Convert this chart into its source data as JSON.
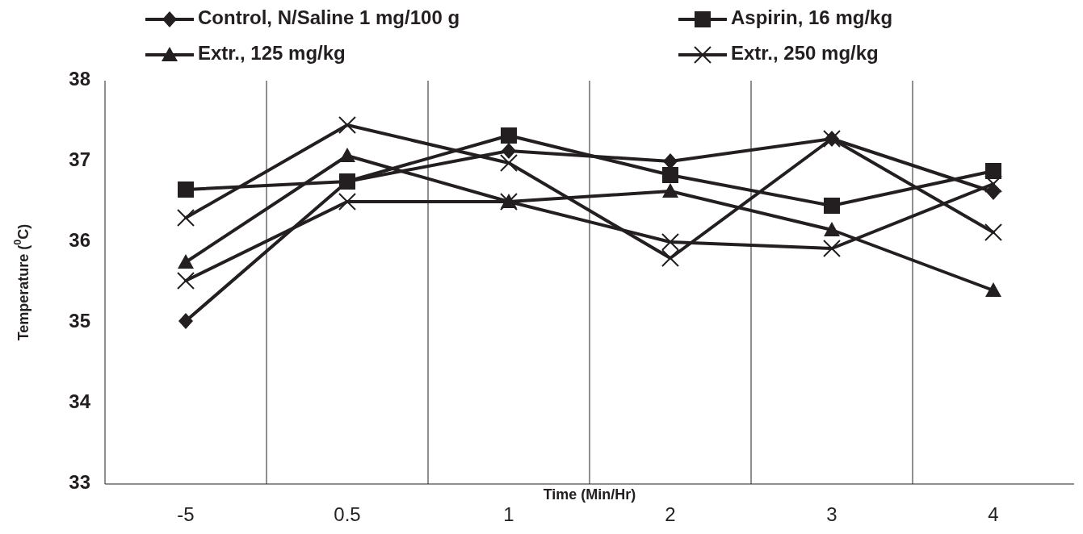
{
  "chart_data": {
    "type": "line",
    "ylabel": "Temperature ($^{0}$C)",
    "xlabel": "Time (Min/Hr)",
    "categories": [
      "-5",
      "0.5",
      "1",
      "2",
      "3",
      "4"
    ],
    "ylim": [
      33,
      38
    ],
    "yticks": [
      33,
      34,
      35,
      36,
      37,
      38
    ],
    "grid": "x",
    "legend": "top",
    "line_style": "solid",
    "series": [
      {
        "name": "Control, N/Saline 1 mg/100 g",
        "color": "#231f20",
        "marker": "diamond",
        "values": [
          35.02,
          36.75,
          37.13,
          37.0,
          37.28,
          36.62
        ]
      },
      {
        "name": "Aspirin, 16 mg/kg",
        "color": "#231f20",
        "marker": "square",
        "values": [
          36.65,
          36.75,
          37.32,
          36.83,
          36.45,
          36.88
        ]
      },
      {
        "name": "Extr., 125 mg/kg",
        "color": "#231f20",
        "marker": "triangle",
        "values": [
          35.75,
          37.07,
          36.5,
          36.63,
          36.15,
          35.4
        ]
      },
      {
        "name": "Extr., 250 mg/kg",
        "color": "#231f20",
        "marker": "cross",
        "values": [
          35.52,
          36.5,
          36.5,
          36.0,
          35.92,
          36.72
        ]
      },
      {
        "color": "#231f20",
        "marker": "cross",
        "values": [
          36.3,
          37.45,
          36.98,
          35.8,
          37.28,
          36.12
        ]
      }
    ]
  }
}
